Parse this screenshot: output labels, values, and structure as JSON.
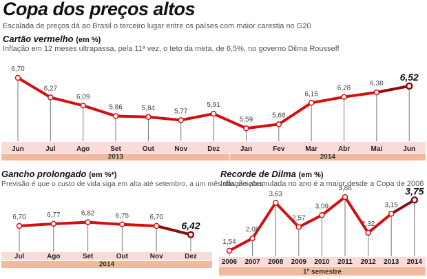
{
  "title": "Copa dos preços altos",
  "subtitle": "Escalada de preços dá ao Brasil o terceiro lugar entre os países com maior carestia no G20",
  "colors": {
    "line": "#d40f0f",
    "line_dark": "#8a0d0d",
    "band_light": "#f9dcd8",
    "band_dark": "#f2b99f"
  },
  "chart_data": [
    {
      "type": "line",
      "title": "Cartão vermelho",
      "unit": "(em %)",
      "subtitle": "Inflação em 12 meses ultrapassa, pela 11ª vez, o teto da meta, de 6,5%, no governo Dilma Rousseff",
      "categories": [
        "Jun",
        "Jul",
        "Ago",
        "Set",
        "Out",
        "Nov",
        "Dez",
        "Jan",
        "Fev",
        "Mar",
        "Abr",
        "Mai",
        "Jun"
      ],
      "values": [
        6.7,
        6.27,
        6.09,
        5.86,
        5.84,
        5.77,
        5.91,
        5.59,
        5.68,
        6.15,
        6.28,
        6.38,
        6.52
      ],
      "labels": [
        "6,70",
        "6,27",
        "6,09",
        "5,86",
        "5,84",
        "5,77",
        "5,91",
        "5,59",
        "5,68",
        "6,15",
        "6,28",
        "6,38",
        "6,52"
      ],
      "groups": [
        {
          "label": "2013",
          "count": 7
        },
        {
          "label": "2014",
          "count": 6
        }
      ]
    },
    {
      "type": "line",
      "title": "Gancho prolongado",
      "unit": "(em %*)",
      "subtitle": "Previsão é que o custo de vida siga em alta até setembro, a um mês das eleições",
      "categories": [
        "Jul",
        "Ago",
        "Set",
        "Out",
        "Nov",
        "Dez"
      ],
      "values": [
        6.7,
        6.77,
        6.82,
        6.75,
        6.7,
        6.42
      ],
      "labels": [
        "6,70",
        "6,77",
        "6,82",
        "6,75",
        "6,70",
        "6,42"
      ],
      "groups": [
        {
          "label": "2014",
          "count": 6
        }
      ]
    },
    {
      "type": "line",
      "title": "Recorde de Dilma",
      "unit": "(em %)",
      "subtitle": "Inflação acumulada no ano é a maior desde a Copa de 2006",
      "categories": [
        "2006",
        "2007",
        "2008",
        "2009",
        "2010",
        "2011",
        "2012",
        "2013",
        "2014"
      ],
      "values": [
        1.54,
        2.08,
        3.63,
        2.57,
        3.09,
        3.88,
        2.32,
        3.15,
        3.75
      ],
      "labels": [
        "1,54",
        "2,08",
        "3,63",
        "2,57",
        "3,09",
        "3,88",
        "2,32",
        "3,15",
        "3,75"
      ],
      "groups": [
        {
          "label": "1º semestre",
          "count": 9
        }
      ]
    }
  ]
}
